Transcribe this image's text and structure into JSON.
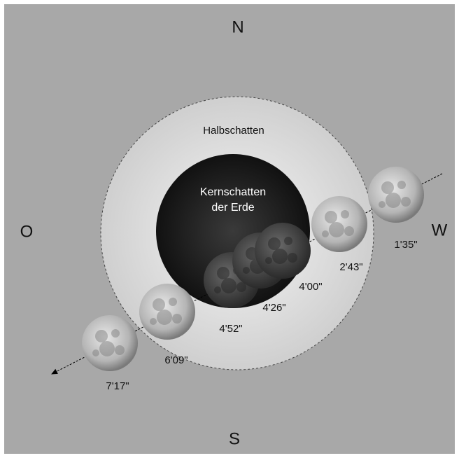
{
  "compass": {
    "north": "N",
    "south": "S",
    "east": "O",
    "west": "W"
  },
  "penumbra": "Halbschatten",
  "umbra": [
    "Kernschatten",
    "der Erde"
  ],
  "moon_times": [
    "1'35\"",
    "2'43\"",
    "4'00\"",
    "4'26\"",
    "4'52\"",
    "6'09\"",
    "7'17\""
  ]
}
